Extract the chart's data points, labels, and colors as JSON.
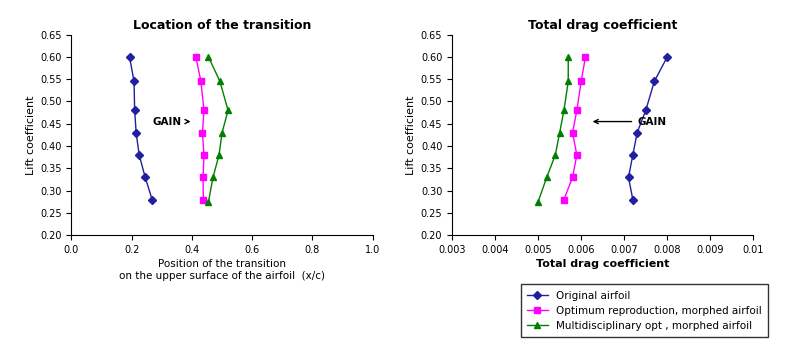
{
  "left_title": "Location of the transition",
  "right_title": "Total drag coefficient",
  "left_xlabel": "Position of the transition\non the upper surface of the airfoil  (x/c)",
  "right_xlabel": "Total drag coefficient",
  "ylabel": "Lift coefficient",
  "left_xlim": [
    0,
    1
  ],
  "left_xticks": [
    0,
    0.2,
    0.4,
    0.6,
    0.8,
    1
  ],
  "right_xlim": [
    0.003,
    0.01
  ],
  "right_xticks": [
    0.003,
    0.004,
    0.005,
    0.006,
    0.007,
    0.008,
    0.009,
    0.01
  ],
  "ylim": [
    0.2,
    0.65
  ],
  "yticks": [
    0.2,
    0.25,
    0.3,
    0.35,
    0.4,
    0.45,
    0.5,
    0.55,
    0.6,
    0.65
  ],
  "blue_color": "#1F1FA0",
  "magenta_color": "#FF00FF",
  "green_color": "#008000",
  "left_blue_x": [
    0.193,
    0.208,
    0.21,
    0.215,
    0.225,
    0.245,
    0.268
  ],
  "left_blue_y": [
    0.6,
    0.545,
    0.48,
    0.43,
    0.38,
    0.33,
    0.28
  ],
  "left_magenta_x": [
    0.413,
    0.43,
    0.44,
    0.435,
    0.44,
    0.437,
    0.438
  ],
  "left_magenta_y": [
    0.6,
    0.545,
    0.48,
    0.43,
    0.38,
    0.33,
    0.28
  ],
  "left_green_x": [
    0.455,
    0.493,
    0.52,
    0.5,
    0.49,
    0.47,
    0.455
  ],
  "left_green_y": [
    0.6,
    0.545,
    0.48,
    0.43,
    0.38,
    0.33,
    0.275
  ],
  "right_blue_x": [
    0.008,
    0.0077,
    0.0075,
    0.0073,
    0.0072,
    0.0071,
    0.0072
  ],
  "right_blue_y": [
    0.6,
    0.545,
    0.48,
    0.43,
    0.38,
    0.33,
    0.28
  ],
  "right_magenta_x": [
    0.0061,
    0.006,
    0.0059,
    0.0058,
    0.0059,
    0.0058,
    0.0056
  ],
  "right_magenta_y": [
    0.6,
    0.545,
    0.48,
    0.43,
    0.38,
    0.33,
    0.28
  ],
  "right_green_x": [
    0.0057,
    0.0057,
    0.0056,
    0.0055,
    0.0054,
    0.0052,
    0.005
  ],
  "right_green_y": [
    0.6,
    0.545,
    0.48,
    0.43,
    0.38,
    0.33,
    0.275
  ],
  "legend_labels": [
    "Original airfoil",
    "Optimum reproduction, morphed airfoil",
    "Multidisciplinary opt , morphed airfoil"
  ]
}
